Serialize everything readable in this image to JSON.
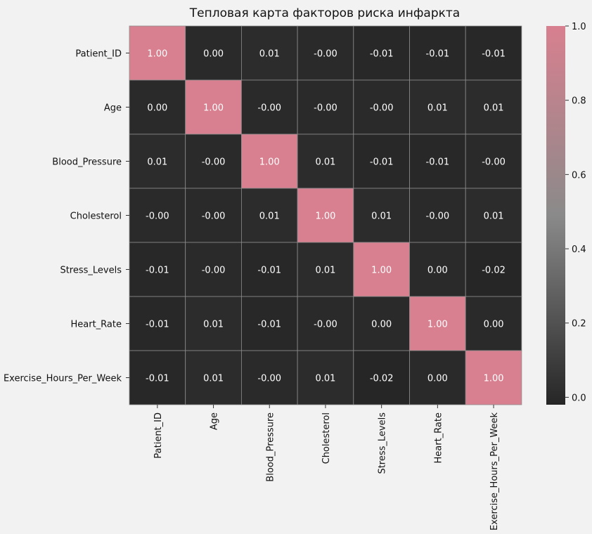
{
  "colors": {
    "background": "#f2f2f2",
    "low": "#262626",
    "mid": "#8a8a8a",
    "high": "#d8808f",
    "grid": "#8c8c8c",
    "text_dark": "#111111",
    "text_light": "#ffffff"
  },
  "chart_data": {
    "type": "heatmap",
    "title": "Тепловая карта факторов риска инфаркта",
    "xlabel": "",
    "ylabel": "",
    "labels": [
      "Patient_ID",
      "Age",
      "Blood_Pressure",
      "Cholesterol",
      "Stress_Levels",
      "Heart_Rate",
      "Exercise_Hours_Per_Week"
    ],
    "matrix": [
      [
        1.0,
        0.0,
        0.01,
        -0.0,
        -0.01,
        -0.01,
        -0.01
      ],
      [
        0.0,
        1.0,
        -0.0,
        -0.0,
        -0.0,
        0.01,
        0.01
      ],
      [
        0.01,
        -0.0,
        1.0,
        0.01,
        -0.01,
        -0.01,
        -0.0
      ],
      [
        -0.0,
        -0.0,
        0.01,
        1.0,
        0.01,
        -0.0,
        0.01
      ],
      [
        -0.01,
        -0.0,
        -0.01,
        0.01,
        1.0,
        0.0,
        -0.02
      ],
      [
        -0.01,
        0.01,
        -0.01,
        -0.0,
        0.0,
        1.0,
        0.0
      ],
      [
        -0.01,
        0.01,
        -0.0,
        0.01,
        -0.02,
        0.0,
        1.0
      ]
    ],
    "cell_labels": [
      [
        "1.00",
        "0.00",
        "0.01",
        "-0.00",
        "-0.01",
        "-0.01",
        "-0.01"
      ],
      [
        "0.00",
        "1.00",
        "-0.00",
        "-0.00",
        "-0.00",
        "0.01",
        "0.01"
      ],
      [
        "0.01",
        "-0.00",
        "1.00",
        "0.01",
        "-0.01",
        "-0.01",
        "-0.00"
      ],
      [
        "-0.00",
        "-0.00",
        "0.01",
        "1.00",
        "0.01",
        "-0.00",
        "0.01"
      ],
      [
        "-0.01",
        "-0.00",
        "-0.01",
        "0.01",
        "1.00",
        "0.00",
        "-0.02"
      ],
      [
        "-0.01",
        "0.01",
        "-0.01",
        "-0.00",
        "0.00",
        "1.00",
        "0.00"
      ],
      [
        "-0.01",
        "0.01",
        "-0.00",
        "0.01",
        "-0.02",
        "0.00",
        "1.00"
      ]
    ],
    "colorbar": {
      "vmin": -0.02,
      "vmax": 1.0,
      "ticks": [
        0.0,
        0.2,
        0.4,
        0.6,
        0.8,
        1.0
      ],
      "tick_labels": [
        "0.0",
        "0.2",
        "0.4",
        "0.6",
        "0.8",
        "1.0"
      ]
    }
  }
}
